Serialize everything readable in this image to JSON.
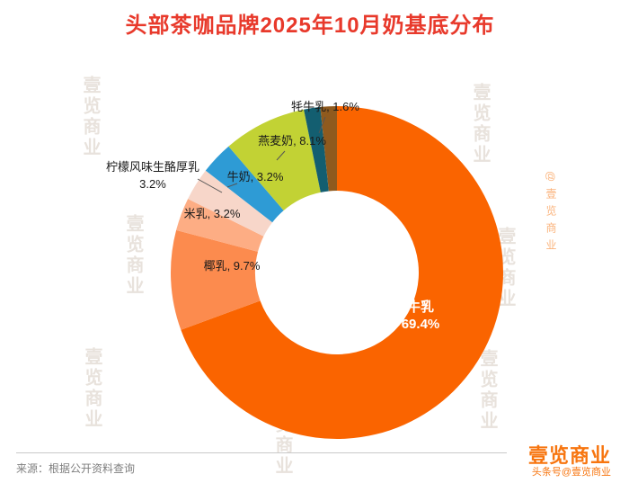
{
  "title": {
    "text": "头部茶咖品牌2025年10月奶基底分布",
    "color": "#E8392B"
  },
  "chart_data": {
    "type": "pie",
    "donut": true,
    "title": "头部茶咖品牌2025年10月奶基底分布",
    "unit": "%",
    "direction": "clockwise",
    "start_angle_deg": 0,
    "inner_radius_ratio": 0.49,
    "slices": [
      {
        "label": "牛乳",
        "value": 69.4,
        "color": "#FA6400",
        "label_position": "inside"
      },
      {
        "label": "椰乳",
        "value": 9.7,
        "color": "#FC8B4E",
        "label_position": "on-slice"
      },
      {
        "label": "米乳",
        "value": 3.2,
        "color": "#FDAD84",
        "label_position": "outside"
      },
      {
        "label": "柠檬风味生酪厚乳",
        "value": 3.2,
        "color": "#F7D6C9",
        "label_position": "outside"
      },
      {
        "label": "牛奶",
        "value": 3.2,
        "color": "#2E9BD5",
        "label_position": "outside"
      },
      {
        "label": "燕麦奶",
        "value": 8.1,
        "color": "#C2D234",
        "label_position": "outside"
      },
      {
        "label": "牦牛乳",
        "value": 1.6,
        "color": "#135E70",
        "label_position": "outside"
      },
      {
        "label": "",
        "value": 1.6,
        "color": "#8F5A1E",
        "label_position": "none"
      }
    ]
  },
  "footer": {
    "source": "来源：根据公开资料查询"
  },
  "branding": {
    "logo": "壹览商业",
    "handle": "头条号@壹览商业",
    "watermark": "壹览商业",
    "side_watermark": "@壹览商业",
    "color": "#F7750F"
  }
}
